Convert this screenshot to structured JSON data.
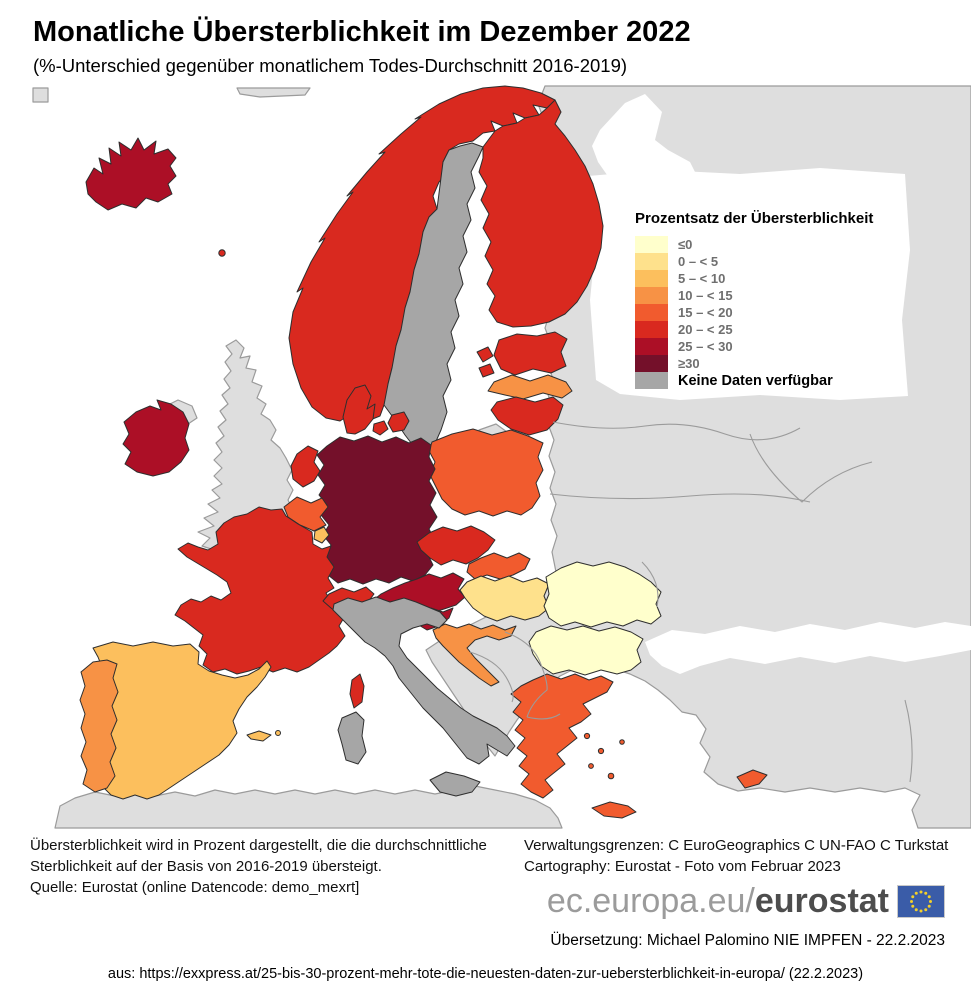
{
  "title": "Monatliche Übersterblichkeit im Dezember 2022",
  "subtitle": "(%-Unterschied gegenüber monatlichem Todes-Durchschnitt 2016-2019)",
  "legend": {
    "title": "Prozentsatz der Übersterblichkeit",
    "items": [
      {
        "label": "≤0",
        "class": "le0"
      },
      {
        "label": "0 – < 5",
        "class": "c0_5"
      },
      {
        "label": "5 – < 10",
        "class": "c5_10"
      },
      {
        "label": "10 – < 15",
        "class": "c10_15"
      },
      {
        "label": "15 – < 20",
        "class": "c15_20"
      },
      {
        "label": "20 – < 25",
        "class": "c20_25"
      },
      {
        "label": "25 – < 30",
        "class": "c25_30"
      },
      {
        "label": "≥30",
        "class": "ge30"
      }
    ],
    "no_data_label": "Keine Daten verfügbar",
    "no_data_class": "no_data"
  },
  "map": {
    "class_colors": {
      "le0": "#FFFFCC",
      "c0_5": "#FEE18C",
      "c5_10": "#FCBF5D",
      "c10_15": "#F79245",
      "c15_20": "#F15B2E",
      "c20_25": "#D9291F",
      "c25_30": "#AC0F26",
      "ge30": "#74102A",
      "no_data": "#A6A6A6",
      "non_eu": "#DEDEDE"
    },
    "sea_color": "#FFFFFF",
    "countries": {
      "IS": "c25_30",
      "NO": "c20_25",
      "SE": "no_data",
      "FI": "c20_25",
      "EE": "c20_25",
      "LV": "c10_15",
      "LT": "c20_25",
      "DK": "c20_25",
      "IE": "c25_30",
      "GB": "non_eu",
      "DE": "ge30",
      "NL": "c20_25",
      "BE": "c15_20",
      "LU": "c5_10",
      "FR": "c20_25",
      "CH": "c20_25",
      "AT": "c25_30",
      "CZ": "c20_25",
      "PL": "c15_20",
      "SK": "c15_20",
      "HU": "c0_5",
      "SI": "c25_30",
      "HR": "c10_15",
      "IT": "no_data",
      "ES": "c5_10",
      "PT": "c10_15",
      "RO": "le0",
      "BG": "le0",
      "EL": "c15_20",
      "CY": "c15_20",
      "FO": "c20_25"
    }
  },
  "footnote_left_lines": [
    "Übersterblichkeit wird in Prozent dargestellt, die die durchschnittliche",
    "Sterblichkeit auf der Basis von 2016-2019 übersteigt.",
    "Quelle: Eurostat (online Datencode: demo_mexrt]"
  ],
  "credits_right_lines": [
    "Verwaltungsgrenzen: C EuroGeographics C UN-FAO C Turkstat",
    "Cartography: Eurostat - Foto vom Februar 2023"
  ],
  "logo": {
    "prefix": "ec.europa.eu/",
    "bold": "eurostat",
    "flag_blue": "#3A5CA8",
    "star_gold": "#F3D02A"
  },
  "translation_line": "Übersetzung: Michael Palomino NIE IMPFEN - 22.2.2023",
  "source_line": "aus: https://exxpress.at/25-bis-30-prozent-mehr-tote-die-neuesten-daten-zur-uebersterblichkeit-in-europa/ (22.2.2023)"
}
